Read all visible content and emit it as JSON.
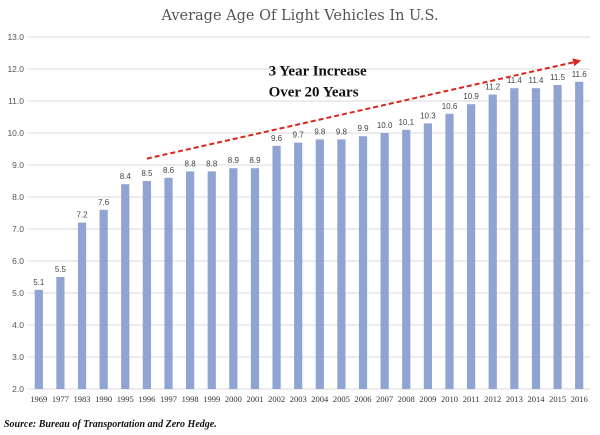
{
  "chart_data": {
    "type": "bar",
    "title": "Average Age Of Light Vehicles In U.S.",
    "categories": [
      "1969",
      "1977",
      "1983",
      "1990",
      "1995",
      "1996",
      "1997",
      "1998",
      "1999",
      "2000",
      "2001",
      "2002",
      "2003",
      "2004",
      "2005",
      "2006",
      "2007",
      "2008",
      "2009",
      "2010",
      "2011",
      "2012",
      "2013",
      "2014",
      "2015",
      "2016"
    ],
    "values": [
      5.1,
      5.5,
      7.2,
      7.6,
      8.4,
      8.5,
      8.6,
      8.8,
      8.8,
      8.9,
      8.9,
      9.6,
      9.7,
      9.8,
      9.8,
      9.9,
      10.0,
      10.1,
      10.3,
      10.6,
      10.9,
      11.2,
      11.4,
      11.4,
      11.5,
      11.6
    ],
    "data_labels": [
      "5.1",
      "5.5",
      "7.2",
      "7.6",
      "8.4",
      "8.5",
      "8.6",
      "8.8",
      "8.8",
      "8.9",
      "8.9",
      "9.6",
      "9.7",
      "9.8",
      "9.8",
      "9.9",
      "10.0",
      "10.1",
      "10.3",
      "10.6",
      "10.9",
      "11.2",
      "11.4",
      "11.4",
      "11.5",
      "11.6"
    ],
    "ylim": [
      2.0,
      13.0
    ],
    "yticks": [
      2.0,
      3.0,
      4.0,
      5.0,
      6.0,
      7.0,
      8.0,
      9.0,
      10.0,
      11.0,
      12.0,
      13.0
    ],
    "ytick_labels": [
      "2.0",
      "3.0",
      "4.0",
      "5.0",
      "6.0",
      "7.0",
      "8.0",
      "9.0",
      "10.0",
      "11.0",
      "12.0",
      "13.0"
    ],
    "grid": true,
    "xlabel": "",
    "ylabel": "",
    "bar_color": "#8fa4d3",
    "grid_color": "#d9d9d9",
    "annotation": {
      "lines": [
        "3 Year Increase",
        "Over 20 Years"
      ],
      "arrow_color": "#d9261c",
      "arrow_from": {
        "category": "1996",
        "value": 9.2
      },
      "arrow_to": {
        "category": "2016",
        "value": 12.25
      },
      "text_anchor": {
        "category": "2002",
        "value": 11.8
      }
    },
    "source": "Source:  Bureau of Transportation and Zero Hedge."
  }
}
